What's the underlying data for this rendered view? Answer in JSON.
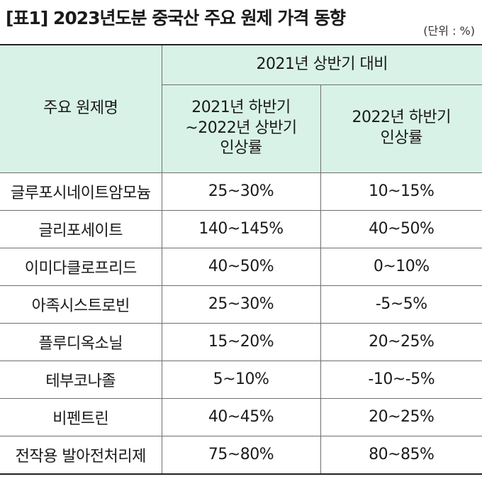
{
  "title": "[표1] 2023년도분 중국산 주요 원제 가격 동향",
  "unit": "(단위 : %)",
  "table": {
    "col_header_main": "주요 원제명",
    "group_header": "2021년 상반기 대비",
    "sub_headers": [
      [
        "2021년 하반기",
        "~2022년 상반기",
        "인상률"
      ],
      [
        "2022년 하반기",
        "인상률"
      ]
    ],
    "rows": [
      {
        "name": "글루포시네이트암모늄",
        "v1": "25~30%",
        "v2": "10~15%"
      },
      {
        "name": "글리포세이트",
        "v1": "140~145%",
        "v2": "40~50%"
      },
      {
        "name": "이미다클로프리드",
        "v1": "40~50%",
        "v2": "0~10%"
      },
      {
        "name": "아족시스트로빈",
        "v1": "25~30%",
        "v2": "-5~5%"
      },
      {
        "name": "플루디옥소닐",
        "v1": "15~20%",
        "v2": "20~25%"
      },
      {
        "name": "테부코나졸",
        "v1": "5~10%",
        "v2": "-10~-5%"
      },
      {
        "name": "비펜트린",
        "v1": "40~45%",
        "v2": "20~25%"
      },
      {
        "name": "전작용 발아전처리제",
        "v1": "75~80%",
        "v2": "80~85%"
      }
    ]
  }
}
